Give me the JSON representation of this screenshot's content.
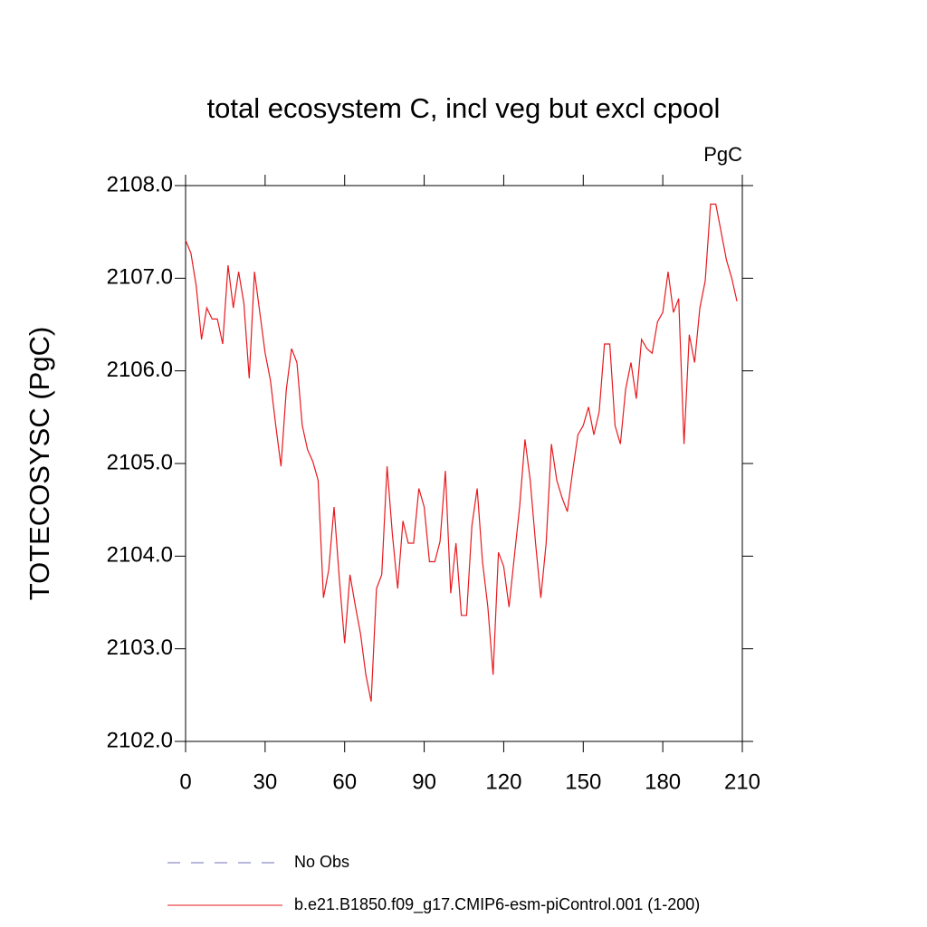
{
  "chart_data": {
    "type": "line",
    "title": "total ecosystem C, incl veg but excl cpool",
    "units_label": "PgC",
    "y_label": "TOTECOSYSC  (PgC)",
    "x": [
      0,
      2,
      4,
      6,
      8,
      10,
      12,
      14,
      16,
      18,
      20,
      22,
      24,
      26,
      28,
      30,
      32,
      34,
      36,
      38,
      40,
      42,
      44,
      46,
      48,
      50,
      52,
      54,
      56,
      58,
      60,
      62,
      64,
      66,
      68,
      70,
      72,
      74,
      76,
      78,
      80,
      82,
      84,
      86,
      88,
      90,
      92,
      94,
      96,
      98,
      100,
      102,
      104,
      106,
      108,
      110,
      112,
      114,
      116,
      118,
      120,
      122,
      124,
      126,
      128,
      130,
      132,
      134,
      136,
      138,
      140,
      142,
      144,
      146,
      148,
      150,
      152,
      154,
      156,
      158,
      160,
      162,
      164,
      166,
      168,
      170,
      172,
      174,
      176,
      178,
      180,
      182,
      184,
      186,
      188,
      190,
      192,
      194,
      196,
      198,
      200,
      202,
      204,
      206,
      208
    ],
    "series": [
      {
        "name": "b.e21.B1850.f09_g17.CMIP6-esm-piControl.001 (1-200)",
        "color": "#e8191e",
        "values": [
          2107.41,
          2107.27,
          2106.92,
          2106.34,
          2106.68,
          2106.56,
          2106.56,
          2106.29,
          2107.14,
          2106.68,
          2107.07,
          2106.73,
          2105.92,
          2107.07,
          2106.63,
          2106.19,
          2105.9,
          2105.41,
          2104.97,
          2105.8,
          2106.24,
          2106.09,
          2105.41,
          2105.15,
          2105.02,
          2104.82,
          2103.55,
          2103.85,
          2104.53,
          2103.75,
          2103.06,
          2103.8,
          2103.47,
          2103.16,
          2102.72,
          2102.43,
          2103.65,
          2103.8,
          2104.97,
          2104.24,
          2103.65,
          2104.38,
          2104.14,
          2104.14,
          2104.73,
          2104.53,
          2103.94,
          2103.94,
          2104.16,
          2104.92,
          2103.6,
          2104.14,
          2103.36,
          2103.36,
          2104.33,
          2104.73,
          2103.94,
          2103.45,
          2102.72,
          2104.04,
          2103.89,
          2103.45,
          2103.99,
          2104.53,
          2105.26,
          2104.82,
          2104.14,
          2103.55,
          2104.14,
          2105.21,
          2104.82,
          2104.63,
          2104.48,
          2104.92,
          2105.31,
          2105.41,
          2105.61,
          2105.31,
          2105.56,
          2106.29,
          2106.29,
          2105.41,
          2105.21,
          2105.8,
          2106.09,
          2105.7,
          2106.34,
          2106.24,
          2106.19,
          2106.53,
          2106.63,
          2107.07,
          2106.63,
          2106.78,
          2105.21,
          2106.39,
          2106.09,
          2106.68,
          2106.97,
          2107.8,
          2107.8,
          2107.5,
          2107.2,
          2107.0,
          2106.75
        ]
      }
    ],
    "legend_extra": [
      {
        "name": "No Obs",
        "color": "#7070b8",
        "style": "dashed"
      }
    ],
    "xlim": [
      0,
      210
    ],
    "xticks": [
      0,
      30,
      60,
      90,
      120,
      150,
      180,
      210
    ],
    "ylim": [
      2102,
      2108
    ],
    "yticks": [
      {
        "value": 2102,
        "label": "2102.0"
      },
      {
        "value": 2103,
        "label": "2103.0"
      },
      {
        "value": 2104,
        "label": "2104.0"
      },
      {
        "value": 2105,
        "label": "2105.0"
      },
      {
        "value": 2106,
        "label": "2106.0"
      },
      {
        "value": 2107,
        "label": "2107.0"
      },
      {
        "value": 2108,
        "label": "2108.0"
      }
    ]
  }
}
